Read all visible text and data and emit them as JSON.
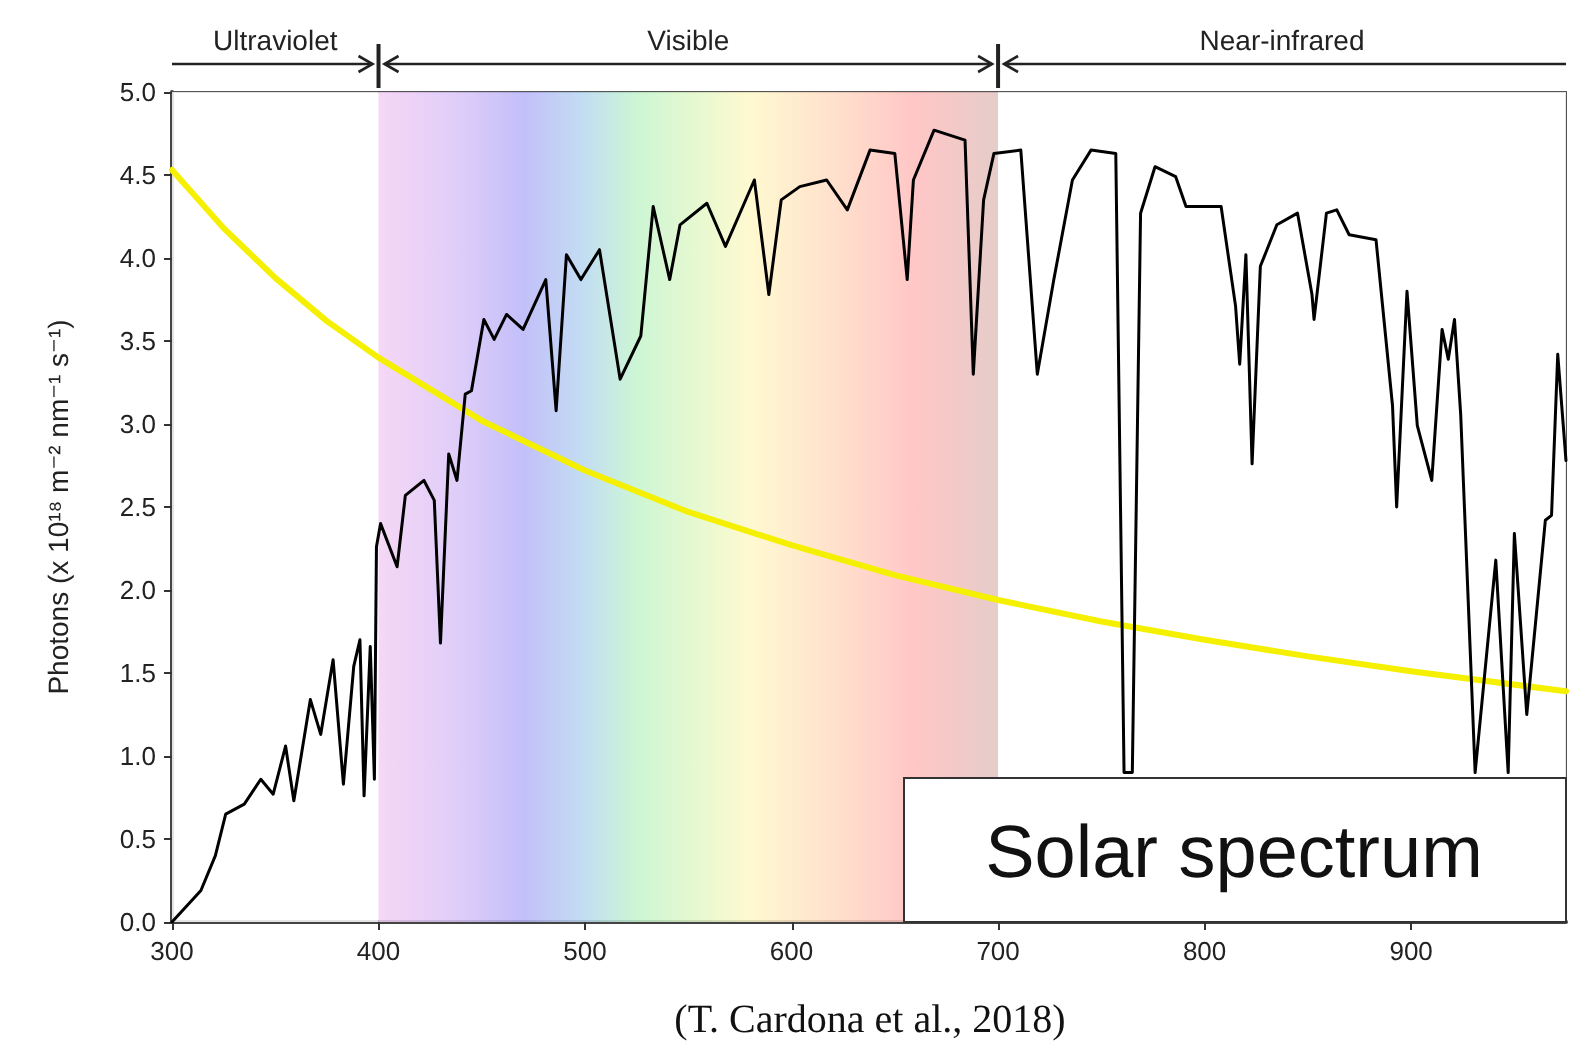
{
  "chart_data": {
    "type": "line",
    "ylabel": "Photons (x 10¹⁸ m⁻² nm⁻¹ s⁻¹)",
    "series": [
      {
        "color": "#000000",
        "x": [
          300,
          314,
          321,
          326,
          335,
          343,
          349,
          355,
          359,
          367,
          372,
          378,
          383,
          388,
          391,
          393,
          396,
          398,
          399,
          401,
          409,
          413,
          422,
          427,
          430,
          434,
          438,
          442,
          445,
          451,
          456,
          462,
          470,
          481,
          486,
          491,
          498,
          507,
          517,
          527,
          533,
          541,
          546,
          559,
          568,
          582,
          589,
          595,
          604,
          617,
          627,
          638,
          650,
          656,
          659,
          669,
          684,
          688,
          693,
          698,
          711,
          719,
          727,
          736,
          745,
          757,
          761,
          765,
          769,
          776,
          786,
          791,
          808,
          815,
          817,
          820,
          823,
          827,
          835,
          845,
          852,
          853,
          859,
          864,
          870,
          883,
          891,
          893,
          898,
          903,
          910,
          915,
          918,
          921,
          924,
          931,
          941,
          947,
          950,
          956,
          965,
          968,
          971,
          975
        ],
        "values": [
          0,
          0.19,
          0.4,
          0.65,
          0.71,
          0.86,
          0.77,
          1.06,
          0.73,
          1.34,
          1.13,
          1.58,
          0.83,
          1.54,
          1.7,
          0.76,
          1.66,
          0.86,
          2.26,
          2.4,
          2.14,
          2.57,
          2.66,
          2.54,
          1.68,
          2.82,
          2.66,
          3.18,
          3.2,
          3.63,
          3.51,
          3.66,
          3.57,
          3.87,
          3.08,
          4.02,
          3.87,
          4.05,
          3.27,
          3.53,
          4.31,
          3.87,
          4.2,
          4.33,
          4.07,
          4.47,
          3.78,
          4.35,
          4.43,
          4.47,
          4.29,
          4.65,
          4.63,
          3.87,
          4.47,
          4.77,
          4.71,
          3.3,
          4.35,
          4.63,
          4.65,
          3.3,
          3.87,
          4.47,
          4.65,
          4.63,
          0.9,
          0.9,
          4.27,
          4.55,
          4.49,
          4.31,
          4.31,
          3.71,
          3.36,
          4.02,
          2.76,
          3.95,
          4.2,
          4.27,
          3.78,
          3.63,
          4.27,
          4.29,
          4.14,
          4.11,
          3.11,
          2.5,
          3.8,
          2.99,
          2.66,
          3.57,
          3.39,
          3.63,
          3.06,
          0.9,
          2.18,
          0.9,
          2.34,
          1.25,
          2.42,
          2.45,
          3.42,
          2.78
        ]
      },
      {
        "color": "#f5f000",
        "x": [
          300,
          325,
          350,
          375,
          400,
          450,
          500,
          550,
          600,
          650,
          700,
          750,
          800,
          850,
          900,
          975
        ],
        "values": [
          4.53,
          4.18,
          3.88,
          3.62,
          3.4,
          3.02,
          2.72,
          2.47,
          2.27,
          2.09,
          1.94,
          1.81,
          1.7,
          1.6,
          1.51,
          1.39
        ]
      }
    ],
    "xlim": [
      300,
      975
    ],
    "xticks": [
      300,
      400,
      500,
      600,
      700,
      800,
      900
    ],
    "ylim": [
      0,
      5
    ],
    "yticks": [
      {
        "value": 0,
        "label": "0.0"
      },
      {
        "value": 0.5,
        "label": "0.5"
      },
      {
        "value": 1,
        "label": "1.0"
      },
      {
        "value": 1.5,
        "label": "1.5"
      },
      {
        "value": 2,
        "label": "2.0"
      },
      {
        "value": 2.5,
        "label": "2.5"
      },
      {
        "value": 3,
        "label": "3.0"
      },
      {
        "value": 3.5,
        "label": "3.5"
      },
      {
        "value": 4,
        "label": "4.0"
      },
      {
        "value": 4.5,
        "label": "4.5"
      },
      {
        "value": 5,
        "label": "5.0"
      }
    ],
    "bands": [
      {
        "axis": "x",
        "from": 300,
        "to": 400,
        "label": "Ultraviolet",
        "color": "#ffffff"
      },
      {
        "axis": "x",
        "from": 400,
        "to": 700,
        "label": "Visible",
        "color": "#e0c4c0"
      },
      {
        "axis": "x",
        "from": 700,
        "to": 975,
        "label": "Near-infrared",
        "color": "#ffffff"
      }
    ],
    "annotations": [
      "Solar spectrum",
      "(T. Cardona et al., 2018)"
    ],
    "grid": false,
    "marker": "none",
    "line_style": "solid"
  }
}
